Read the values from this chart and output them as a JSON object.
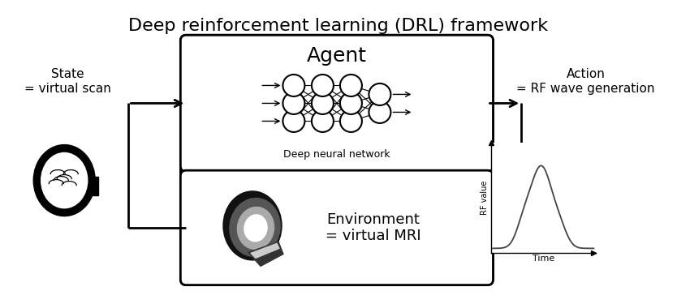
{
  "title": "Deep reinforcement learning (DRL) framework",
  "title_fontsize": 16,
  "background_color": "#ffffff",
  "text_color": "#000000",
  "state_label": "State\n= virtual scan",
  "action_label": "Action\n= RF wave generation",
  "agent_label": "Agent",
  "dnn_label": "Deep neural network",
  "env_label": "Environment\n= virtual MRI",
  "rf_ylabel": "RF value",
  "rf_xlabel": "Time",
  "fig_w": 8.34,
  "fig_h": 3.59,
  "dpi": 100
}
